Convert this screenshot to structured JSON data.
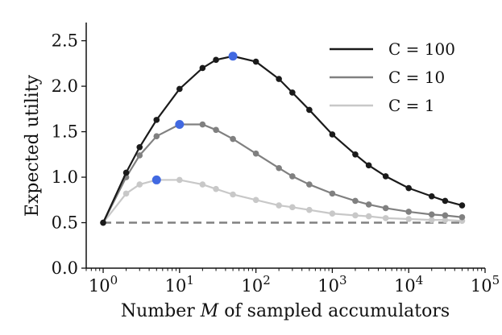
{
  "chart_data": {
    "type": "line",
    "xscale": "log",
    "xlim": [
      0.6,
      100000
    ],
    "ylim": [
      0.0,
      2.7
    ],
    "xlabel_parts": [
      "Number ",
      "M",
      " of sampled accumulators"
    ],
    "ylabel": "Expected utility",
    "xticks": [
      {
        "value": 1,
        "base": "10",
        "exp": "0"
      },
      {
        "value": 10,
        "base": "10",
        "exp": "1"
      },
      {
        "value": 100,
        "base": "10",
        "exp": "2"
      },
      {
        "value": 1000,
        "base": "10",
        "exp": "3"
      },
      {
        "value": 10000,
        "base": "10",
        "exp": "4"
      },
      {
        "value": 100000,
        "base": "10",
        "exp": "5"
      }
    ],
    "yticks": [
      {
        "value": 0.0,
        "label": "0.0"
      },
      {
        "value": 0.5,
        "label": "0.5"
      },
      {
        "value": 1.0,
        "label": "1.0"
      },
      {
        "value": 1.5,
        "label": "1.5"
      },
      {
        "value": 2.0,
        "label": "2.0"
      },
      {
        "value": 2.5,
        "label": "2.5"
      }
    ],
    "x": [
      1,
      2,
      3,
      5,
      10,
      20,
      30,
      50,
      100,
      200,
      300,
      500,
      1000,
      2000,
      3000,
      5000,
      10000,
      20000,
      30000,
      50000
    ],
    "series": [
      {
        "name": "C = 100",
        "color": "#1a1a1a",
        "values": [
          0.5,
          1.05,
          1.33,
          1.63,
          1.97,
          2.2,
          2.29,
          2.33,
          2.27,
          2.08,
          1.93,
          1.74,
          1.47,
          1.25,
          1.13,
          1.01,
          0.88,
          0.79,
          0.74,
          0.69
        ],
        "max_index": 7
      },
      {
        "name": "C = 10",
        "color": "#808080",
        "values": [
          0.5,
          1.0,
          1.24,
          1.45,
          1.58,
          1.58,
          1.52,
          1.42,
          1.26,
          1.1,
          1.01,
          0.92,
          0.82,
          0.74,
          0.7,
          0.66,
          0.62,
          0.59,
          0.58,
          0.56
        ],
        "max_index": 4
      },
      {
        "name": "C = 1",
        "color": "#c8c8c8",
        "values": [
          0.5,
          0.82,
          0.92,
          0.97,
          0.97,
          0.92,
          0.87,
          0.81,
          0.75,
          0.69,
          0.67,
          0.64,
          0.6,
          0.58,
          0.57,
          0.55,
          0.54,
          0.53,
          0.53,
          0.52
        ],
        "max_index": 3
      }
    ],
    "baseline": {
      "value": 0.5,
      "style": "dashed",
      "color": "#808080"
    },
    "max_marker_color": "#4169e1",
    "legend_position": "top-right"
  }
}
